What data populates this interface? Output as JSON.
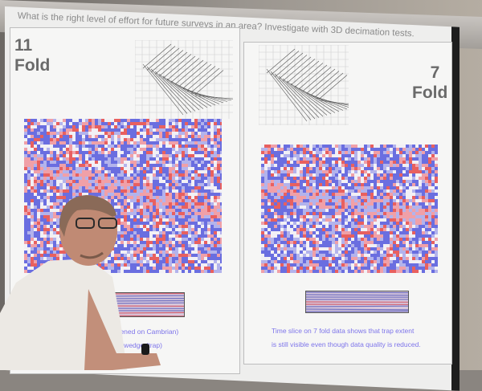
{
  "slide": {
    "title": "What is the right level of effort for future surveys in an area? Investigate with 3D decimation tests.",
    "left_panel": {
      "fold_number": "11",
      "fold_label": "Fold",
      "caption_line1": "attened on Cambrian)",
      "caption_line2": "ton wedge (trap)"
    },
    "right_panel": {
      "fold_number": "7",
      "fold_label": "Fold",
      "caption_line1": "Time slice on 7 fold data shows that trap extent",
      "caption_line2": "is still visible even though data quality is reduced."
    }
  },
  "colors": {
    "seismic_positive": "#e8605f",
    "seismic_negative": "#6a6ee0",
    "caption": "#7d74ea"
  }
}
